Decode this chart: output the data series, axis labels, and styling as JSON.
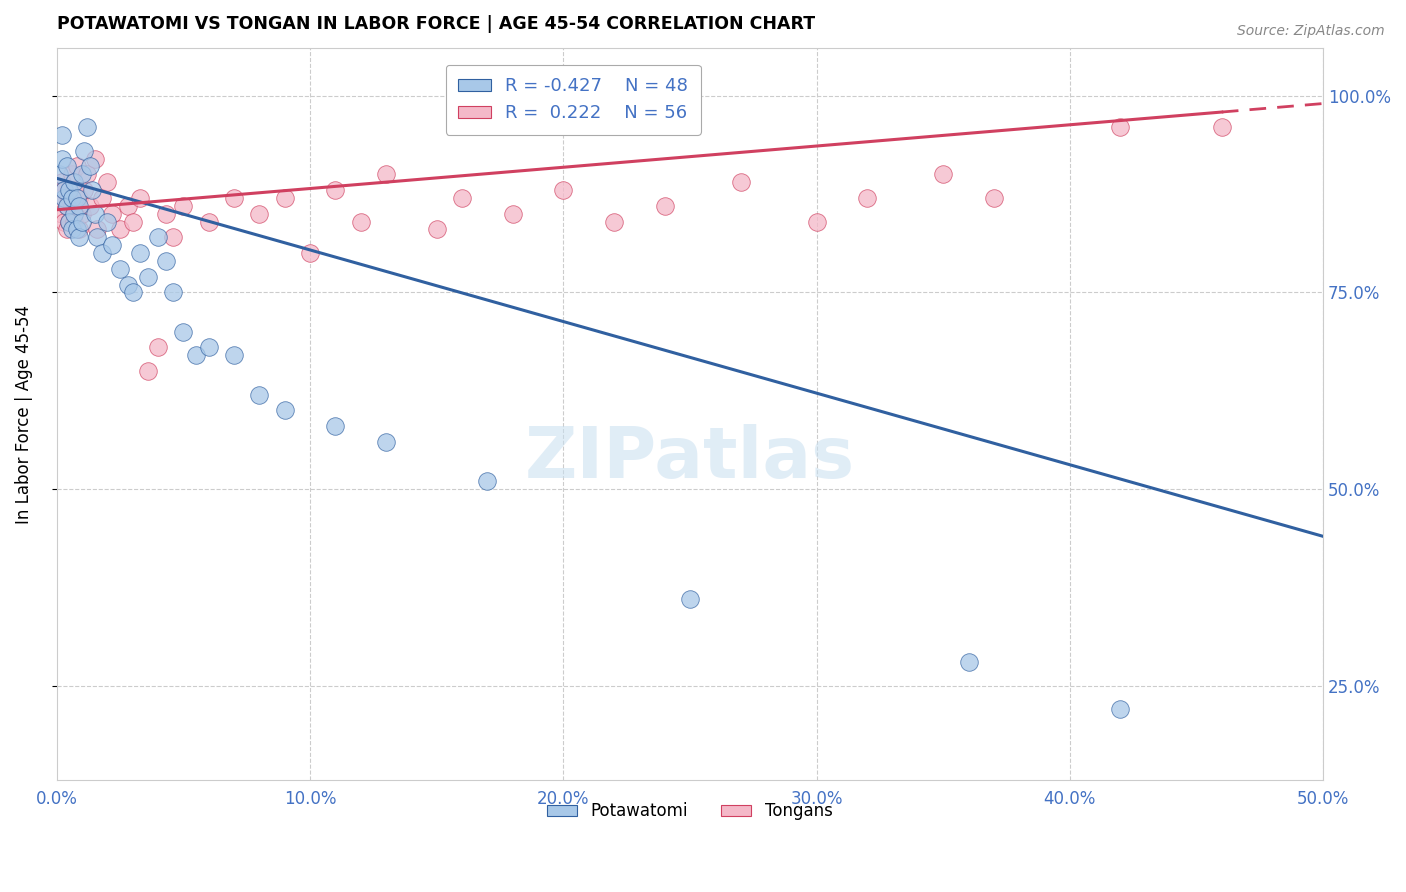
{
  "title": "POTAWATOMI VS TONGAN IN LABOR FORCE | AGE 45-54 CORRELATION CHART",
  "source_text": "Source: ZipAtlas.com",
  "ylabel": "In Labor Force | Age 45-54",
  "xlim": [
    0.0,
    0.5
  ],
  "ylim": [
    0.13,
    1.06
  ],
  "xticks": [
    0.0,
    0.1,
    0.2,
    0.3,
    0.4,
    0.5
  ],
  "xticklabels": [
    "0.0%",
    "10.0%",
    "20.0%",
    "30.0%",
    "40.0%",
    "50.0%"
  ],
  "yticks": [
    0.25,
    0.5,
    0.75,
    1.0
  ],
  "yticklabels": [
    "25.0%",
    "50.0%",
    "75.0%",
    "100.0%"
  ],
  "blue_color": "#a8c8e8",
  "pink_color": "#f4b8c8",
  "blue_line_color": "#3060a0",
  "pink_line_color": "#d04060",
  "watermark_text": "ZIPatlas",
  "potawatomi_x": [
    0.001,
    0.002,
    0.002,
    0.003,
    0.003,
    0.004,
    0.004,
    0.005,
    0.005,
    0.006,
    0.006,
    0.007,
    0.007,
    0.008,
    0.008,
    0.009,
    0.009,
    0.01,
    0.01,
    0.011,
    0.012,
    0.013,
    0.014,
    0.015,
    0.016,
    0.018,
    0.02,
    0.022,
    0.025,
    0.028,
    0.03,
    0.033,
    0.036,
    0.04,
    0.043,
    0.046,
    0.05,
    0.055,
    0.06,
    0.07,
    0.08,
    0.09,
    0.11,
    0.13,
    0.17,
    0.25,
    0.36,
    0.42
  ],
  "potawatomi_y": [
    0.9,
    0.95,
    0.92,
    0.87,
    0.88,
    0.91,
    0.86,
    0.88,
    0.84,
    0.87,
    0.83,
    0.89,
    0.85,
    0.87,
    0.83,
    0.86,
    0.82,
    0.84,
    0.9,
    0.93,
    0.96,
    0.91,
    0.88,
    0.85,
    0.82,
    0.8,
    0.84,
    0.81,
    0.78,
    0.76,
    0.75,
    0.8,
    0.77,
    0.82,
    0.79,
    0.75,
    0.7,
    0.67,
    0.68,
    0.67,
    0.62,
    0.6,
    0.58,
    0.56,
    0.51,
    0.36,
    0.28,
    0.22
  ],
  "tongan_x": [
    0.001,
    0.002,
    0.002,
    0.003,
    0.003,
    0.004,
    0.004,
    0.005,
    0.005,
    0.006,
    0.006,
    0.007,
    0.007,
    0.008,
    0.008,
    0.009,
    0.009,
    0.01,
    0.011,
    0.012,
    0.013,
    0.015,
    0.016,
    0.018,
    0.02,
    0.022,
    0.025,
    0.028,
    0.03,
    0.033,
    0.036,
    0.04,
    0.043,
    0.046,
    0.05,
    0.06,
    0.07,
    0.08,
    0.09,
    0.1,
    0.11,
    0.12,
    0.13,
    0.15,
    0.16,
    0.18,
    0.2,
    0.22,
    0.24,
    0.27,
    0.3,
    0.32,
    0.35,
    0.37,
    0.42,
    0.46
  ],
  "tongan_y": [
    0.87,
    0.89,
    0.85,
    0.88,
    0.84,
    0.86,
    0.83,
    0.87,
    0.84,
    0.9,
    0.86,
    0.88,
    0.84,
    0.91,
    0.86,
    0.83,
    0.87,
    0.85,
    0.88,
    0.9,
    0.86,
    0.92,
    0.83,
    0.87,
    0.89,
    0.85,
    0.83,
    0.86,
    0.84,
    0.87,
    0.65,
    0.68,
    0.85,
    0.82,
    0.86,
    0.84,
    0.87,
    0.85,
    0.87,
    0.8,
    0.88,
    0.84,
    0.9,
    0.83,
    0.87,
    0.85,
    0.88,
    0.84,
    0.86,
    0.89,
    0.84,
    0.87,
    0.9,
    0.87,
    0.96,
    0.96
  ],
  "blue_trendline_x0": 0.0,
  "blue_trendline_y0": 0.895,
  "blue_trendline_x1": 0.5,
  "blue_trendline_y1": 0.44,
  "pink_trendline_x0": 0.0,
  "pink_trendline_y0": 0.855,
  "pink_trendline_x1_solid": 0.46,
  "pink_trendline_x1_dashed": 0.5,
  "pink_trendline_y1": 0.99
}
